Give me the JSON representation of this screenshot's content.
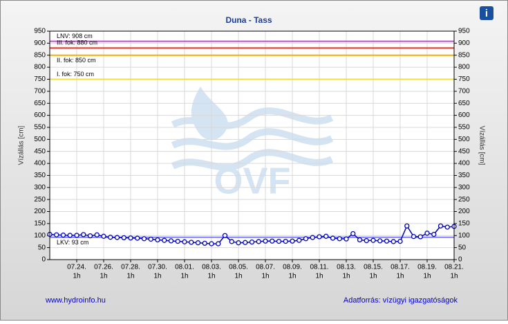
{
  "chart_data": {
    "type": "line",
    "title": "Duna - Tass",
    "y_label": "Vízállás [cm]",
    "y2_label": "Vízállás [cm]",
    "xlim": [
      0,
      30
    ],
    "xticks": [
      {
        "value": 2,
        "label": "07.24."
      },
      {
        "value": 4,
        "label": "07.26."
      },
      {
        "value": 6,
        "label": "07.28."
      },
      {
        "value": 8,
        "label": "07.30."
      },
      {
        "value": 10,
        "label": "08.01."
      },
      {
        "value": 12,
        "label": "08.03."
      },
      {
        "value": 14,
        "label": "08.05."
      },
      {
        "value": 16,
        "label": "08.07."
      },
      {
        "value": 18,
        "label": "08.09."
      },
      {
        "value": 20,
        "label": "08.11."
      },
      {
        "value": 22,
        "label": "08.13."
      },
      {
        "value": 24,
        "label": "08.15."
      },
      {
        "value": 26,
        "label": "08.17."
      },
      {
        "value": 28,
        "label": "08.19."
      },
      {
        "value": 30,
        "label": "08.21."
      }
    ],
    "xtick_hour_label": "1h",
    "ylim": [
      0,
      950
    ],
    "yticks": [
      0,
      50,
      100,
      150,
      200,
      250,
      300,
      350,
      400,
      450,
      500,
      550,
      600,
      650,
      700,
      750,
      800,
      850,
      900,
      950
    ],
    "y2lim": [
      0,
      950
    ],
    "y2ticks": [
      0,
      50,
      100,
      150,
      200,
      250,
      300,
      350,
      400,
      450,
      500,
      550,
      600,
      650,
      700,
      750,
      800,
      850,
      900,
      950
    ],
    "grid": true,
    "x": [
      0,
      0.5,
      1,
      1.5,
      2,
      2.5,
      3,
      3.5,
      4,
      4.5,
      5,
      5.5,
      6,
      6.5,
      7,
      7.5,
      8,
      8.5,
      9,
      9.5,
      10,
      10.5,
      11,
      11.5,
      12,
      12.5,
      13,
      13.5,
      14,
      14.5,
      15,
      15.5,
      16,
      16.5,
      17,
      17.5,
      18,
      18.5,
      19,
      19.5,
      20,
      20.5,
      21,
      21.5,
      22,
      22.5,
      23,
      23.5,
      24,
      24.5,
      25,
      25.5,
      26,
      26.5,
      27,
      27.5,
      28,
      28.5,
      29,
      29.5,
      30
    ],
    "series": [
      {
        "color": "#0000c0",
        "values": [
          105,
          103,
          102,
          101,
          101,
          104,
          99,
          103,
          97,
          93,
          92,
          91,
          90,
          89,
          87,
          85,
          82,
          80,
          78,
          76,
          74,
          72,
          70,
          68,
          66,
          66,
          100,
          75,
          70,
          71,
          73,
          75,
          77,
          77,
          76,
          76,
          77,
          80,
          87,
          92,
          95,
          97,
          89,
          87,
          86,
          108,
          82,
          79,
          80,
          78,
          77,
          75,
          76,
          140,
          96,
          95,
          110,
          105,
          140,
          135,
          138
        ]
      }
    ],
    "reference_lines": [
      {
        "label": "LNV: 908 cm",
        "value": 908,
        "color": "#c050d0"
      },
      {
        "label": "III. fok: 880 cm",
        "value": 880,
        "color": "#e83020"
      },
      {
        "label": "II. fok: 850 cm",
        "value": 850,
        "color": "#f0b000"
      },
      {
        "label": "I. fok: 750 cm",
        "value": 750,
        "color": "#f0e040"
      },
      {
        "label": "LKV: 93 cm",
        "value": 93,
        "color": "#8080ff"
      }
    ],
    "watermark": "OVF",
    "footer_left": "www.hydroinfo.hu",
    "footer_right": "Adatforrás: vízügyi igazgatóságok",
    "info_icon": "i"
  }
}
